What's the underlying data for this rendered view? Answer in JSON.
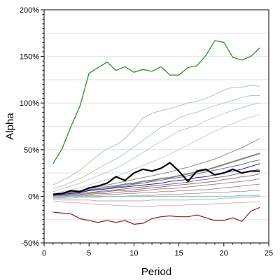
{
  "chart_data": {
    "type": "line",
    "title": "",
    "xlabel": "Period",
    "ylabel": "Alpha",
    "xlim": [
      0,
      25
    ],
    "ylim": [
      -50,
      200
    ],
    "x_ticks": [
      0,
      5,
      10,
      15,
      20,
      25
    ],
    "x_tick_labels": [
      "0",
      "5",
      "10",
      "15",
      "20",
      "25"
    ],
    "y_ticks": [
      -50,
      0,
      50,
      100,
      150,
      200
    ],
    "y_tick_labels": [
      "-50%",
      "0%",
      "50%",
      "100%",
      "150%",
      "200%"
    ],
    "grid": true,
    "legend": "none",
    "x": [
      1,
      2,
      3,
      4,
      5,
      6,
      7,
      8,
      9,
      10,
      11,
      12,
      13,
      14,
      15,
      16,
      17,
      18,
      19,
      20,
      21,
      22,
      23,
      24
    ],
    "series": [
      {
        "color": "#1a8a1a",
        "width": 1.2,
        "values": [
          35,
          51,
          75,
          97,
          132,
          138,
          144,
          135,
          139,
          133,
          136,
          134,
          139,
          130,
          130,
          138,
          140,
          151,
          167,
          165,
          149,
          146,
          150,
          159
        ]
      },
      {
        "color": "#8b1a1a",
        "width": 1.2,
        "values": [
          -17,
          -18,
          -19,
          -24,
          -26,
          -28,
          -26,
          -28,
          -26,
          -30,
          -29,
          -24,
          -22,
          -21,
          -22,
          -22,
          -20,
          -23,
          -26,
          -26,
          -23,
          -27,
          -16,
          -12
        ]
      },
      {
        "color": "#aac8aa",
        "width": 1,
        "values": [
          12,
          17,
          22,
          28,
          36,
          44,
          51,
          55,
          62,
          72,
          84,
          89,
          92,
          94,
          97,
          100,
          102,
          105,
          109,
          114,
          117,
          117,
          119,
          118
        ]
      },
      {
        "color": "#b4ccb4",
        "width": 1,
        "values": [
          8,
          11,
          15,
          19,
          24,
          30,
          35,
          40,
          46,
          53,
          60,
          67,
          74,
          78,
          84,
          88,
          90,
          94,
          97,
          100,
          103,
          106,
          108,
          108
        ]
      },
      {
        "color": "#bcd2bc",
        "width": 1,
        "values": [
          5,
          8,
          11,
          14,
          18,
          22,
          26,
          30,
          35,
          41,
          47,
          53,
          59,
          64,
          70,
          73,
          76,
          81,
          85,
          89,
          92,
          95,
          98,
          100
        ]
      },
      {
        "color": "#c0d4c0",
        "width": 1,
        "values": [
          3,
          5,
          7,
          9,
          12,
          15,
          18,
          21,
          25,
          29,
          33,
          37,
          41,
          45,
          50,
          55,
          60,
          65,
          70,
          74,
          78,
          82,
          85,
          88
        ]
      },
      {
        "color": "#8f8f8f",
        "width": 1,
        "values": [
          2,
          3,
          5,
          6,
          8,
          10,
          12,
          14,
          16,
          18,
          20,
          22,
          24,
          26,
          29,
          31,
          34,
          37,
          40,
          44,
          48,
          52,
          57,
          62
        ]
      },
      {
        "color": "#888888",
        "width": 2,
        "values": [
          2,
          3,
          4,
          5,
          7,
          8,
          10,
          11,
          13,
          14,
          16,
          17,
          19,
          20,
          22,
          24,
          26,
          28,
          31,
          34,
          37,
          40,
          43,
          46
        ]
      },
      {
        "color": "#707070",
        "width": 1,
        "values": [
          1,
          2,
          3,
          4,
          6,
          7,
          8,
          10,
          11,
          13,
          14,
          16,
          17,
          19,
          20,
          22,
          24,
          26,
          28,
          30,
          32,
          34,
          37,
          39
        ]
      },
      {
        "color": "#2222cc",
        "width": 1,
        "values": [
          1,
          2,
          3,
          4,
          6,
          7,
          8,
          9,
          10,
          11,
          12,
          13,
          14,
          16,
          17,
          18,
          20,
          21,
          23,
          25,
          27,
          29,
          32,
          35
        ]
      },
      {
        "color": "#777777",
        "width": 1,
        "values": [
          0,
          1,
          2,
          3,
          4,
          5,
          6,
          7,
          8,
          9,
          10,
          11,
          12,
          13,
          14,
          15,
          17,
          18,
          20,
          21,
          23,
          25,
          27,
          29
        ]
      },
      {
        "color": "#9a7070",
        "width": 1,
        "values": [
          0,
          1,
          1,
          2,
          3,
          4,
          5,
          6,
          6,
          7,
          8,
          9,
          10,
          11,
          12,
          13,
          14,
          15,
          16,
          18,
          19,
          21,
          22,
          24
        ]
      },
      {
        "color": "#a88888",
        "width": 1,
        "values": [
          0,
          0,
          1,
          1,
          2,
          3,
          3,
          4,
          5,
          5,
          6,
          7,
          8,
          8,
          9,
          10,
          11,
          12,
          13,
          14,
          15,
          16,
          17,
          19
        ]
      },
      {
        "color": "#b09090",
        "width": 1,
        "values": [
          -1,
          -1,
          0,
          0,
          1,
          1,
          2,
          2,
          3,
          3,
          4,
          4,
          5,
          5,
          6,
          6,
          7,
          7,
          8,
          9,
          10,
          11,
          12,
          13
        ]
      },
      {
        "color": "#b8a0a0",
        "width": 1,
        "values": [
          -2,
          -2,
          -2,
          -1,
          -1,
          -1,
          0,
          0,
          0,
          1,
          1,
          1,
          2,
          2,
          2,
          3,
          3,
          4,
          4,
          4,
          5,
          5,
          6,
          6
        ]
      },
      {
        "color": "#c4aaaa",
        "width": 1,
        "values": [
          -3,
          -4,
          -4,
          -4,
          -4,
          -5,
          -5,
          -5,
          -5,
          -5,
          -5,
          -4,
          -4,
          -4,
          -4,
          -4,
          -3,
          -3,
          -3,
          -2,
          -2,
          -1,
          -1,
          0
        ]
      },
      {
        "color": "#d0b4b4",
        "width": 1,
        "values": [
          -5,
          -6,
          -7,
          -7,
          -8,
          -9,
          -9,
          -10,
          -10,
          -11,
          -11,
          -11,
          -10,
          -10,
          -10,
          -9,
          -9,
          -9,
          -8,
          -8,
          -7,
          -7,
          -6,
          -6
        ]
      },
      {
        "color": "#66cccc",
        "width": 1,
        "values": [
          0,
          0,
          0,
          0,
          0,
          0,
          0,
          0,
          0,
          0,
          0,
          0,
          0,
          0,
          0,
          0,
          0,
          0,
          0,
          0,
          0,
          1,
          1,
          1
        ]
      },
      {
        "color": "#000000",
        "width": 2.2,
        "values": [
          2,
          3,
          6,
          5,
          9,
          11,
          14,
          21,
          17,
          25,
          29,
          27,
          30,
          36,
          27,
          16,
          27,
          29,
          23,
          25,
          29,
          25,
          27,
          27
        ]
      }
    ]
  }
}
